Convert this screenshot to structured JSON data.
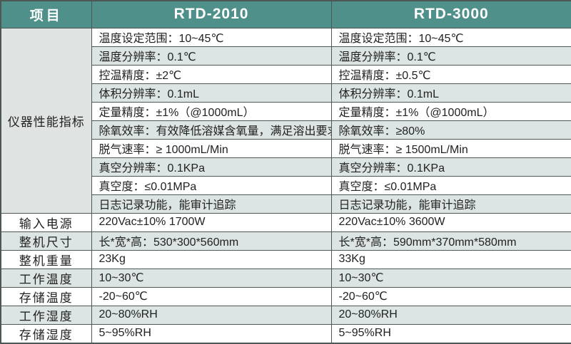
{
  "colors": {
    "header_bg": "#4f908a",
    "header_text": "#ffffff",
    "stripe_bg": "#dce5e3",
    "group_bg": "#dfe4e3",
    "row_bg": "#ffffff",
    "border": "#4d5756",
    "text": "#222222"
  },
  "header": {
    "item": "项目",
    "rtd2010": "RTD-2010",
    "rtd3000": "RTD-3000"
  },
  "performance": {
    "group_label": "仪器性能指标",
    "rows": [
      {
        "rtd2010": "温度设定范围：10~45℃",
        "rtd3000": "温度设定范围：10~45℃"
      },
      {
        "rtd2010": "温度分辨率：0.1℃",
        "rtd3000": "温度分辨率：0.1℃"
      },
      {
        "rtd2010": "控温精度：±2℃",
        "rtd3000": "控温精度：±0.5℃"
      },
      {
        "rtd2010": "体积分辨率：0.1mL",
        "rtd3000": "体积分辨率：0.1mL"
      },
      {
        "rtd2010": "定量精度：±1%（@1000mL）",
        "rtd3000": "定量精度：±1%（@1000mL）"
      },
      {
        "rtd2010": "除氧效率：有效降低溶媒含氧量，满足溶出要求",
        "rtd3000": "除氧效率：≥80%"
      },
      {
        "rtd2010": "脱气速率：≥ 1000mL/Min",
        "rtd3000": "脱气速率：≥ 1500mL/Min"
      },
      {
        "rtd2010": "真空分辨率：0.1KPa",
        "rtd3000": "真空分辨率：0.1KPa"
      },
      {
        "rtd2010": "真空度：≤0.01MPa",
        "rtd3000": "真空度：≤0.01MPa"
      },
      {
        "rtd2010": "日志记录功能，能审计追踪",
        "rtd3000": "日志记录功能，能审计追踪"
      }
    ]
  },
  "specs": {
    "rows": [
      {
        "label": "输入电源",
        "rtd2010": "220Vac±10% 1700W",
        "rtd3000": "220Vac±10% 3600W"
      },
      {
        "label": "整机尺寸",
        "rtd2010": "长*宽*高：530*300*560mm",
        "rtd3000": "长*宽*高：590mm*370mm*580mm"
      },
      {
        "label": "整机重量",
        "rtd2010": "23Kg",
        "rtd3000": "33Kg"
      },
      {
        "label": "工作温度",
        "rtd2010": "10~30℃",
        "rtd3000": "10~30℃"
      },
      {
        "label": "存储温度",
        "rtd2010": "-20~60℃",
        "rtd3000": "-20~60℃"
      },
      {
        "label": "工作湿度",
        "rtd2010": "20~80%RH",
        "rtd3000": "20~80%RH"
      },
      {
        "label": "存储湿度",
        "rtd2010": "5~95%RH",
        "rtd3000": "5~95%RH"
      }
    ]
  }
}
